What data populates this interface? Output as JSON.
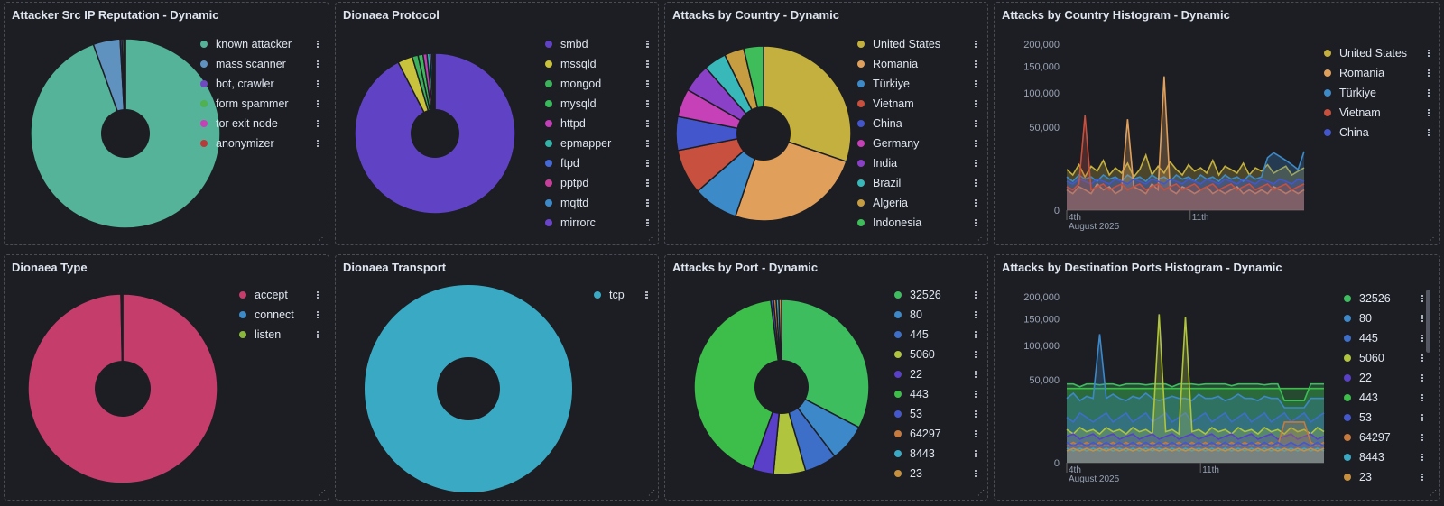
{
  "panels": {
    "reputation": {
      "title": "Attacker Src IP Reputation - Dynamic",
      "chart_data": {
        "type": "pie",
        "donut": true,
        "title": "Attacker Src IP Reputation - Dynamic",
        "labels": [
          "known attacker",
          "mass scanner",
          "bot, crawler",
          "form spammer",
          "tor exit node",
          "anonymizer"
        ],
        "values": [
          94.5,
          4.6,
          0.3,
          0.3,
          0.2,
          0.1
        ],
        "colors": [
          "#54b399",
          "#6092c0",
          "#6e49bf",
          "#4fb14f",
          "#c542b6",
          "#b83b3b"
        ]
      }
    },
    "protocol": {
      "title": "Dionaea Protocol",
      "chart_data": {
        "type": "pie",
        "donut": true,
        "title": "Dionaea Protocol",
        "labels": [
          "smbd",
          "mssqld",
          "mongod",
          "mysqld",
          "httpd",
          "epmapper",
          "ftpd",
          "pptpd",
          "mqttd",
          "mirrorc"
        ],
        "values": [
          92.4,
          3.0,
          1.2,
          1.0,
          0.8,
          0.6,
          0.4,
          0.3,
          0.2,
          0.1
        ],
        "colors": [
          "#6043c4",
          "#c8c23c",
          "#3db05c",
          "#3ab85c",
          "#c23fb8",
          "#33b3a8",
          "#4769d6",
          "#c83f9b",
          "#3d8ac8",
          "#6a45c9"
        ]
      }
    },
    "country": {
      "title": "Attacks by Country - Dynamic",
      "chart_data": {
        "type": "pie",
        "donut": true,
        "title": "Attacks by Country - Dynamic",
        "labels": [
          "United States",
          "Romania",
          "Türkiye",
          "Vietnam",
          "China",
          "Germany",
          "India",
          "Brazil",
          "Algeria",
          "Indonesia"
        ],
        "values": [
          29,
          24,
          8,
          8,
          6,
          5,
          5,
          4,
          3.5,
          3.5
        ],
        "colors": [
          "#c4b03e",
          "#e0a05c",
          "#3d8ac8",
          "#c7503e",
          "#4456cc",
          "#c640b8",
          "#8b40c8",
          "#38b8b8",
          "#c69d40",
          "#3fbd5a"
        ]
      }
    },
    "country_hist": {
      "title": "Attacks by Country Histogram - Dynamic",
      "chart_data": {
        "type": "area",
        "title": "Attacks by Country Histogram - Dynamic",
        "x_tick_labels": [
          "4th",
          "11th"
        ],
        "x_sublabel": "August 2025",
        "y_ticks": [
          "200,000",
          "150,000",
          "100,000",
          "50,000",
          "0"
        ],
        "y_tick_values": [
          200000,
          150000,
          100000,
          50000,
          0
        ],
        "y_scale": "sqrt",
        "ylim": [
          0,
          200000
        ],
        "series": [
          {
            "name": "United States",
            "color": "#c4b03e",
            "values": [
              12000,
              9000,
              15000,
              8000,
              14000,
              11000,
              18000,
              9000,
              13000,
              10000,
              16000,
              8000,
              12000,
              22000,
              9000,
              14000,
              10000,
              17000,
              12000,
              9000,
              15000,
              11000,
              13000,
              10000,
              18000,
              9000,
              14000,
              12000,
              10000,
              16000,
              9000,
              13000,
              11000,
              15000,
              10000,
              12000,
              14000,
              9000,
              11000,
              13000
            ]
          },
          {
            "name": "Romania",
            "color": "#e0a05c",
            "values": [
              3000,
              2000,
              4000,
              3000,
              2000,
              5000,
              3000,
              4000,
              2000,
              3000,
              60000,
              4000,
              3000,
              2000,
              5000,
              3000,
              130000,
              3000,
              2000,
              4000,
              3000,
              2000,
              3000,
              4000,
              2000,
              3000,
              2000,
              3000,
              4000,
              2000,
              3000,
              2000,
              3000,
              2000,
              4000,
              3000,
              2000,
              3000,
              2000,
              3000
            ]
          },
          {
            "name": "Türkiye",
            "color": "#3d8ac8",
            "values": [
              8000,
              6000,
              9000,
              7000,
              8000,
              6000,
              9000,
              7000,
              8000,
              6000,
              9000,
              7000,
              8000,
              6000,
              9000,
              7000,
              8000,
              6000,
              9000,
              7000,
              8000,
              6000,
              9000,
              7000,
              8000,
              6000,
              9000,
              7000,
              8000,
              6000,
              9000,
              7000,
              8000,
              20000,
              24000,
              21000,
              18000,
              15000,
              12000,
              25000
            ]
          },
          {
            "name": "Vietnam",
            "color": "#c7503e",
            "values": [
              4000,
              3000,
              5000,
              65000,
              3000,
              4000,
              5000,
              3000,
              4000,
              5000,
              3000,
              4000,
              5000,
              3000,
              4000,
              5000,
              3000,
              4000,
              5000,
              3000,
              4000,
              5000,
              3000,
              4000,
              5000,
              3000,
              4000,
              5000,
              3000,
              4000,
              5000,
              3000,
              4000,
              5000,
              3000,
              4000,
              5000,
              3000,
              4000,
              5000
            ]
          },
          {
            "name": "China",
            "color": "#4456cc",
            "values": [
              6000,
              5000,
              7000,
              6000,
              5000,
              7000,
              6000,
              5000,
              7000,
              6000,
              5000,
              7000,
              6000,
              5000,
              7000,
              6000,
              5000,
              7000,
              6000,
              5000,
              7000,
              6000,
              5000,
              7000,
              6000,
              5000,
              7000,
              6000,
              5000,
              7000,
              6000,
              5000,
              7000,
              6000,
              5000,
              7000,
              6000,
              5000,
              7000,
              6000
            ]
          }
        ]
      }
    },
    "type": {
      "title": "Dionaea Type",
      "chart_data": {
        "type": "pie",
        "donut": true,
        "title": "Dionaea Type",
        "labels": [
          "accept",
          "connect",
          "listen"
        ],
        "values": [
          99.7,
          0.2,
          0.1
        ],
        "colors": [
          "#c43d6b",
          "#3d8ac8",
          "#8ab83d"
        ]
      }
    },
    "transport": {
      "title": "Dionaea Transport",
      "chart_data": {
        "type": "pie",
        "donut": true,
        "title": "Dionaea Transport",
        "labels": [
          "tcp"
        ],
        "values": [
          100
        ],
        "colors": [
          "#3aaac4"
        ]
      }
    },
    "port": {
      "title": "Attacks by Port - Dynamic",
      "chart_data": {
        "type": "pie",
        "donut": true,
        "title": "Attacks by Port - Dynamic",
        "labels": [
          "32526",
          "80",
          "445",
          "5060",
          "22",
          "443",
          "53",
          "64297",
          "8443",
          "23"
        ],
        "values": [
          33,
          7,
          6,
          6,
          4,
          43,
          0.5,
          0.5,
          0.5,
          0.5
        ],
        "colors": [
          "#3dbd5e",
          "#3d88c8",
          "#3d6fc8",
          "#b0c43d",
          "#5a3fc8",
          "#3dbd4a",
          "#4458cc",
          "#c67a3d",
          "#3aaac4",
          "#c6903d"
        ]
      }
    },
    "port_hist": {
      "title": "Attacks by Destination Ports Histogram - Dynamic",
      "chart_data": {
        "type": "area",
        "title": "Attacks by Destination Ports Histogram - Dynamic",
        "x_tick_labels": [
          "4th",
          "11th"
        ],
        "x_sublabel": "August 2025",
        "y_ticks": [
          "200,000",
          "150,000",
          "100,000",
          "50,000",
          "0"
        ],
        "y_tick_values": [
          200000,
          150000,
          100000,
          50000,
          0
        ],
        "y_scale": "sqrt",
        "ylim": [
          0,
          200000
        ],
        "series": [
          {
            "name": "32526",
            "color": "#3dbd5e",
            "values": [
              45000,
              45000,
              42000,
              45000,
              45000,
              44000,
              45000,
              45000,
              43000,
              45000,
              45000,
              45000,
              44000,
              45000,
              45000,
              45000,
              42000,
              45000,
              45000,
              45000,
              44000,
              45000,
              45000,
              45000,
              45000,
              43000,
              45000,
              45000,
              45000,
              45000,
              44000,
              45000,
              45000,
              28000,
              28000,
              28000,
              28000,
              45000,
              45000,
              45000
            ]
          },
          {
            "name": "80",
            "color": "#3d88c8",
            "values": [
              30000,
              35000,
              28000,
              32000,
              30000,
              120000,
              30000,
              34000,
              30000,
              28000,
              32000,
              30000,
              35000,
              30000,
              28000,
              30000,
              32000,
              30000,
              30000,
              28000,
              34000,
              30000,
              30000,
              32000,
              28000,
              30000,
              34000,
              30000,
              30000,
              28000,
              32000,
              30000,
              30000,
              22000,
              22000,
              22000,
              22000,
              30000,
              30000,
              30000
            ]
          },
          {
            "name": "445",
            "color": "#3d6fc8",
            "values": [
              15000,
              12000,
              18000,
              15000,
              12000,
              15000,
              18000,
              12000,
              15000,
              18000,
              12000,
              15000,
              18000,
              12000,
              15000,
              18000,
              12000,
              15000,
              18000,
              12000,
              15000,
              18000,
              12000,
              15000,
              18000,
              12000,
              15000,
              18000,
              12000,
              15000,
              18000,
              12000,
              15000,
              18000,
              12000,
              15000,
              18000,
              12000,
              15000,
              18000
            ]
          },
          {
            "name": "5060",
            "color": "#b0c43d",
            "values": [
              8000,
              6000,
              9000,
              7000,
              8000,
              6000,
              9000,
              7000,
              8000,
              6000,
              9000,
              7000,
              8000,
              6000,
              160000,
              7000,
              8000,
              6000,
              155000,
              7000,
              8000,
              6000,
              9000,
              7000,
              8000,
              6000,
              9000,
              7000,
              8000,
              6000,
              9000,
              7000,
              8000,
              6000,
              9000,
              7000,
              8000,
              6000,
              9000,
              7000
            ]
          },
          {
            "name": "22",
            "color": "#5a3fc8",
            "values": [
              5000,
              6000,
              4000,
              5000,
              6000,
              4000,
              5000,
              6000,
              4000,
              5000,
              6000,
              4000,
              5000,
              6000,
              4000,
              5000,
              6000,
              4000,
              5000,
              6000,
              4000,
              5000,
              6000,
              4000,
              5000,
              6000,
              4000,
              5000,
              6000,
              4000,
              5000,
              6000,
              4000,
              5000,
              6000,
              4000,
              5000,
              6000,
              4000,
              5000
            ]
          },
          {
            "name": "443",
            "color": "#3dbd4a",
            "values": [
              40000,
              40000,
              40000,
              40000,
              40000,
              40000,
              40000,
              40000,
              40000,
              40000,
              40000,
              40000,
              40000,
              40000,
              40000,
              40000,
              40000,
              40000,
              40000,
              40000,
              40000,
              40000,
              40000,
              40000,
              40000,
              40000,
              40000,
              40000,
              40000,
              40000,
              40000,
              40000,
              40000,
              40000,
              40000,
              40000,
              40000,
              40000,
              40000,
              40000
            ]
          },
          {
            "name": "53",
            "color": "#4458cc",
            "values": [
              3000,
              2000,
              3000,
              2000,
              3000,
              2000,
              3000,
              2000,
              3000,
              2000,
              3000,
              2000,
              3000,
              2000,
              3000,
              2000,
              3000,
              2000,
              3000,
              2000,
              3000,
              2000,
              3000,
              2000,
              3000,
              2000,
              3000,
              2000,
              3000,
              2000,
              3000,
              2000,
              3000,
              2000,
              3000,
              2000,
              3000,
              2000,
              3000,
              2000
            ]
          },
          {
            "name": "64297",
            "color": "#c67a3d",
            "values": [
              2000,
              3000,
              2000,
              3000,
              2000,
              3000,
              2000,
              3000,
              2000,
              3000,
              2000,
              3000,
              2000,
              3000,
              2000,
              3000,
              2000,
              3000,
              2000,
              3000,
              2000,
              3000,
              2000,
              3000,
              2000,
              3000,
              2000,
              3000,
              2000,
              3000,
              2000,
              3000,
              2000,
              12000,
              12000,
              12000,
              12000,
              3000,
              2000,
              3000
            ]
          },
          {
            "name": "8443",
            "color": "#3aaac4",
            "values": [
              1500,
              1000,
              1500,
              1000,
              1500,
              1000,
              1500,
              1000,
              1500,
              1000,
              1500,
              1000,
              1500,
              1000,
              1500,
              1000,
              1500,
              1000,
              1500,
              1000,
              1500,
              1000,
              1500,
              1000,
              1500,
              1000,
              1500,
              1000,
              1500,
              1000,
              1500,
              1000,
              1500,
              1000,
              1500,
              1000,
              1500,
              1000,
              1500,
              1000
            ]
          },
          {
            "name": "23",
            "color": "#c6903d",
            "values": [
              1000,
              1500,
              1000,
              1500,
              1000,
              1500,
              1000,
              1500,
              1000,
              1500,
              1000,
              1500,
              1000,
              1500,
              1000,
              1500,
              1000,
              1500,
              1000,
              1500,
              1000,
              1500,
              1000,
              1500,
              1000,
              1500,
              1000,
              1500,
              1000,
              1500,
              1000,
              1500,
              1000,
              1500,
              1000,
              1500,
              1000,
              1500,
              1000,
              1500
            ]
          }
        ]
      }
    }
  }
}
